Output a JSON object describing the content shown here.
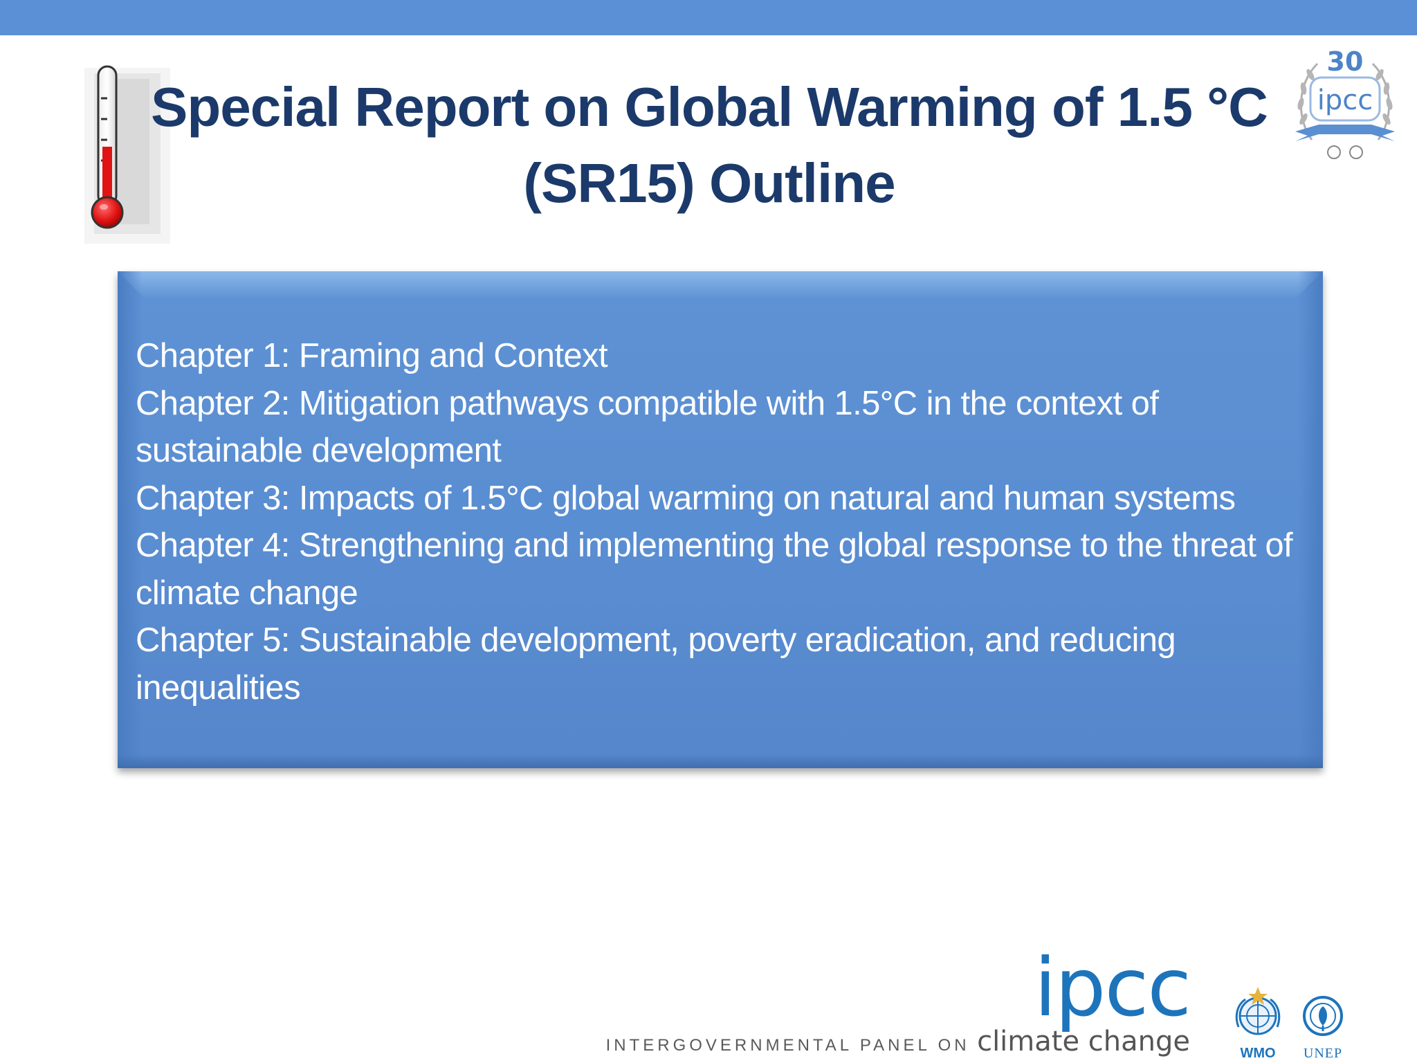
{
  "slide": {
    "title_line1": "Special Report on Global Warming of 1.5 °C",
    "title_line2": "(SR15) Outline",
    "accent_color": "#5b8fd6",
    "title_color": "#1b3a6b"
  },
  "outline": {
    "lines": [
      "Chapter 1: Framing and Context",
      "Chapter 2: Mitigation pathways compatible with 1.5°C in the context of",
      "sustainable development",
      "Chapter 3: Impacts of 1.5°C global warming on natural and human systems",
      "Chapter 4: Strengthening and implementing the global response to the threat of",
      "climate change",
      "Chapter 5: Sustainable development, poverty eradication, and reducing",
      "inequalities"
    ]
  },
  "seal": {
    "number": "30",
    "word": "ipcc"
  },
  "footer": {
    "ipcc_word": "ipcc",
    "panel_small": "INTERGOVERNMENTAL PANEL ON",
    "panel_big": "climate change",
    "wmo_label": "WMO",
    "unep_label": "UNEP"
  },
  "icons": {
    "thermometer": "thermometer-icon",
    "seal": "ipcc-30-seal-icon",
    "wmo": "wmo-emblem-icon",
    "unep": "unep-emblem-icon"
  }
}
